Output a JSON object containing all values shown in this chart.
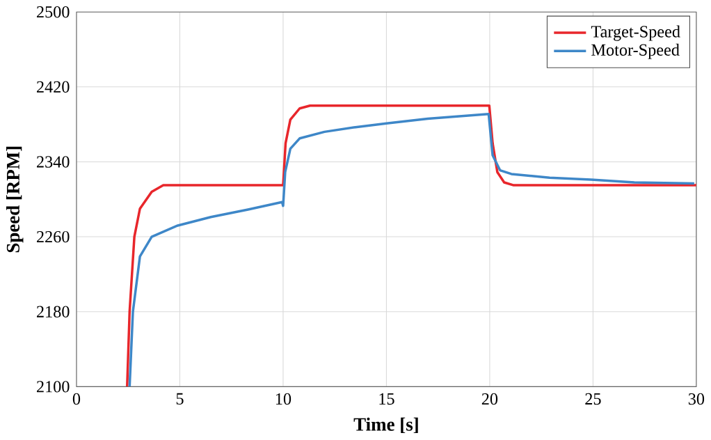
{
  "chart_data": {
    "type": "line",
    "xlabel": "Time [s]",
    "ylabel": "Speed [RPM]",
    "xlim": [
      0,
      30
    ],
    "ylim": [
      2100,
      2500
    ],
    "xticks": [
      0,
      5,
      10,
      15,
      20,
      25,
      30
    ],
    "yticks": [
      2100,
      2180,
      2260,
      2340,
      2420,
      2500
    ],
    "grid": true,
    "legend": "top right",
    "line_style": "solid",
    "marker": "none",
    "series": [
      {
        "name": "Target-Speed",
        "color": "#e8262b",
        "x": [
          2.45,
          2.57,
          2.8,
          3.07,
          3.64,
          4.2,
          10.0,
          10.12,
          10.35,
          10.8,
          11.3,
          19.98,
          20.14,
          20.37,
          20.7,
          21.16,
          30
        ],
        "values": [
          2100,
          2180,
          2260,
          2290,
          2308,
          2315,
          2315,
          2360,
          2385,
          2397,
          2400,
          2400,
          2360,
          2329,
          2318,
          2315,
          2315
        ]
      },
      {
        "name": "Motor-Speed",
        "color": "#3e87c8",
        "x": [
          2.57,
          2.73,
          3.07,
          3.64,
          4.9,
          6.5,
          8.3,
          9.95,
          10.0,
          10.1,
          10.35,
          10.8,
          12,
          13.5,
          15,
          17,
          19.95,
          20.14,
          20.5,
          21.05,
          22.9,
          24.9,
          27,
          29.9
        ],
        "values": [
          2100,
          2180,
          2239,
          2260,
          2272,
          2281,
          2289,
          2297,
          2293,
          2329,
          2354,
          2365,
          2372,
          2377,
          2381,
          2386,
          2391,
          2347,
          2331,
          2327,
          2323,
          2321,
          2318,
          2317
        ]
      }
    ]
  }
}
